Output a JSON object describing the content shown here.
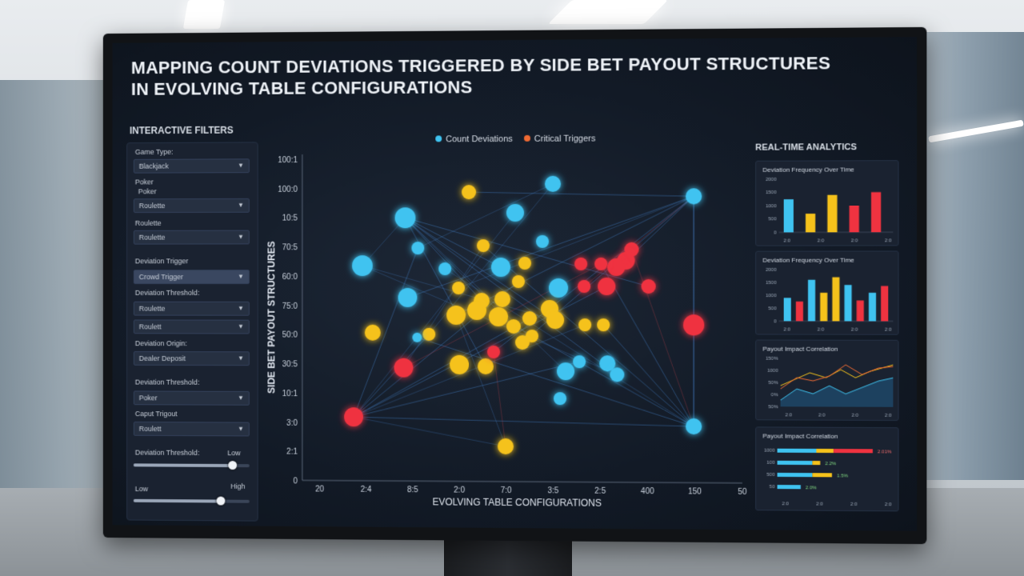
{
  "title": {
    "line1": "MAPPING COUNT DEVIATIONS TRIGGERED BY SIDE BET PAYOUT STRUCTURES",
    "line2": "IN EVOLVING TABLE CONFIGURATIONS"
  },
  "filters": {
    "heading": "INTERACTIVE FILTERS",
    "game_type_label": "Game Type:",
    "game_type_value": "Blackjack",
    "poker_label": "Poker",
    "poker_sub": "Poker",
    "poker_value": "Roulette",
    "roulette_label": "Roulette",
    "roulette_value": "Roulette",
    "deviation_trigger_label": "Deviation Trigger",
    "deviation_trigger_value": "Crowd Trigger",
    "threshold1_label": "Deviation Threshold:",
    "threshold1_value_a": "Roulette",
    "threshold1_value_b": "Roulett",
    "origin_label": "Deviation Origin:",
    "origin_value": "Dealer Deposit",
    "threshold2_label": "Deviation Threshold:",
    "threshold2_value": "Poker",
    "payout_label": "Caput Trigout",
    "payout_value": "Roulett",
    "threshold3_label": "Deviation Threshold:",
    "slider1_right": "Low",
    "slider1_level": 0.85,
    "slider2_low": "Low",
    "slider2_high": "High",
    "slider2_level": 0.75
  },
  "legend": {
    "count_deviations": "Count Deviations",
    "critical_triggers": "Critical Triggers"
  },
  "colors": {
    "blue": "#3fc3f0",
    "yellow": "#f5c21b",
    "red": "#ef3340"
  },
  "chart_data": {
    "type": "scatter",
    "title": "",
    "ylabel": "SIDE BET PAYOUT STRUCTURES",
    "xlabel": "EVOLVING TABLE CONFIGURATIONS",
    "y_ticks": [
      "100:1",
      "100:0",
      "10:5",
      "70:5",
      "60:0",
      "75:0",
      "50:0",
      "30:5",
      "10:1",
      "3:0",
      "2:1",
      "0"
    ],
    "x_ticks": [
      "20",
      "2:4",
      "8:5",
      "2:0",
      "7:0",
      "3:5",
      "2:5",
      "400",
      "150",
      "50"
    ]
  },
  "analytics": {
    "heading": "REAL-TIME ANALYTICS",
    "panel1": {
      "title": "Deviation Frequency Over Time",
      "y_ticks": [
        "2000",
        "1500",
        "1000",
        "500",
        "0"
      ],
      "x_ticks": [
        "2:0",
        "2:0",
        "2:0",
        "2:0"
      ],
      "bars": [
        {
          "color": "blue",
          "value": 0.62
        },
        {
          "color": "yellow",
          "value": 0.35
        },
        {
          "color": "yellow",
          "value": 0.7
        },
        {
          "color": "red",
          "value": 0.5
        },
        {
          "color": "red",
          "value": 0.75
        }
      ]
    },
    "panel2": {
      "title": "Deviation Frequency Over Time",
      "y_ticks": [
        "2000",
        "1500",
        "1000",
        "500",
        "0"
      ],
      "x_ticks": [
        "2:0",
        "2:0",
        "2:0",
        "2:0"
      ],
      "bars": [
        {
          "color": "blue",
          "value": 0.45
        },
        {
          "color": "red",
          "value": 0.38
        },
        {
          "color": "blue",
          "value": 0.8
        },
        {
          "color": "yellow",
          "value": 0.55
        },
        {
          "color": "yellow",
          "value": 0.85
        },
        {
          "color": "blue",
          "value": 0.7
        },
        {
          "color": "red",
          "value": 0.4
        },
        {
          "color": "blue",
          "value": 0.55
        },
        {
          "color": "red",
          "value": 0.68
        }
      ]
    },
    "panel3": {
      "title": "Payout Impact Correlation",
      "y_ticks": [
        "150%",
        "1000",
        "50%",
        "0%",
        "50%"
      ],
      "x_ticks": [
        "2:0",
        "2:0",
        "2:0",
        "2:0"
      ]
    },
    "panel4": {
      "title": "Payout Impact Correlation",
      "rows": [
        {
          "label": "1000",
          "value": "2.01%",
          "blue": 0.5,
          "yellow": 0.22,
          "red": 0.5
        },
        {
          "label": "100",
          "value": "2.2%",
          "blue": 0.45,
          "yellow": 0.1,
          "red": 0
        },
        {
          "label": "500",
          "value": "1.5%",
          "blue": 0.45,
          "yellow": 0.25,
          "red": 0
        },
        {
          "label": "50",
          "value": "2.0%",
          "blue": 0.3,
          "yellow": 0,
          "red": 0
        }
      ],
      "x_ticks": [
        "2:0",
        "2:0",
        "2:0",
        "2:0"
      ]
    }
  }
}
